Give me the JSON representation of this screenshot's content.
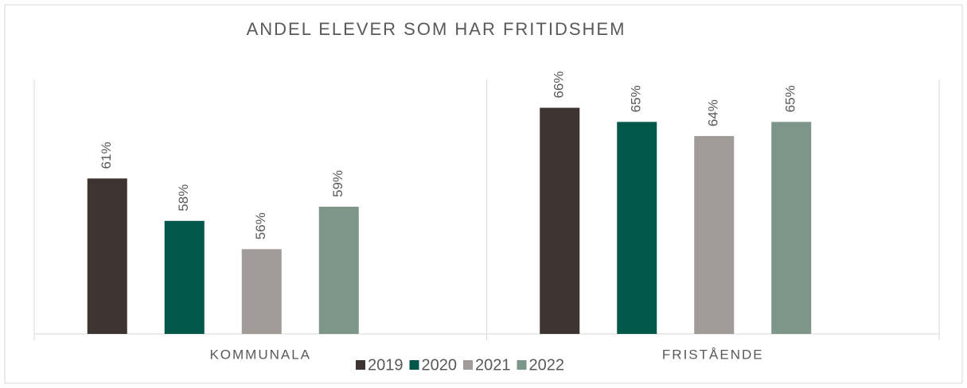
{
  "chart_data": {
    "type": "bar",
    "title": "ANDEL ELEVER SOM HAR FRITIDSHEM",
    "categories": [
      "KOMMUNALA",
      "FRISTÅENDE"
    ],
    "series": [
      {
        "name": "2019",
        "color": "#3d3431",
        "values": [
          61,
          66
        ],
        "value_labels": [
          "61%",
          "66%"
        ]
      },
      {
        "name": "2020",
        "color": "#00574a",
        "values": [
          58,
          65
        ],
        "value_labels": [
          "58%",
          "65%"
        ]
      },
      {
        "name": "2021",
        "color": "#a09b98",
        "values": [
          56,
          64
        ],
        "value_labels": [
          "56%",
          "64%"
        ]
      },
      {
        "name": "2022",
        "color": "#7d9689",
        "values": [
          59,
          65
        ],
        "value_labels": [
          "59%",
          "65%"
        ]
      }
    ],
    "ylim": [
      50,
      68
    ],
    "legend": "bottom"
  }
}
